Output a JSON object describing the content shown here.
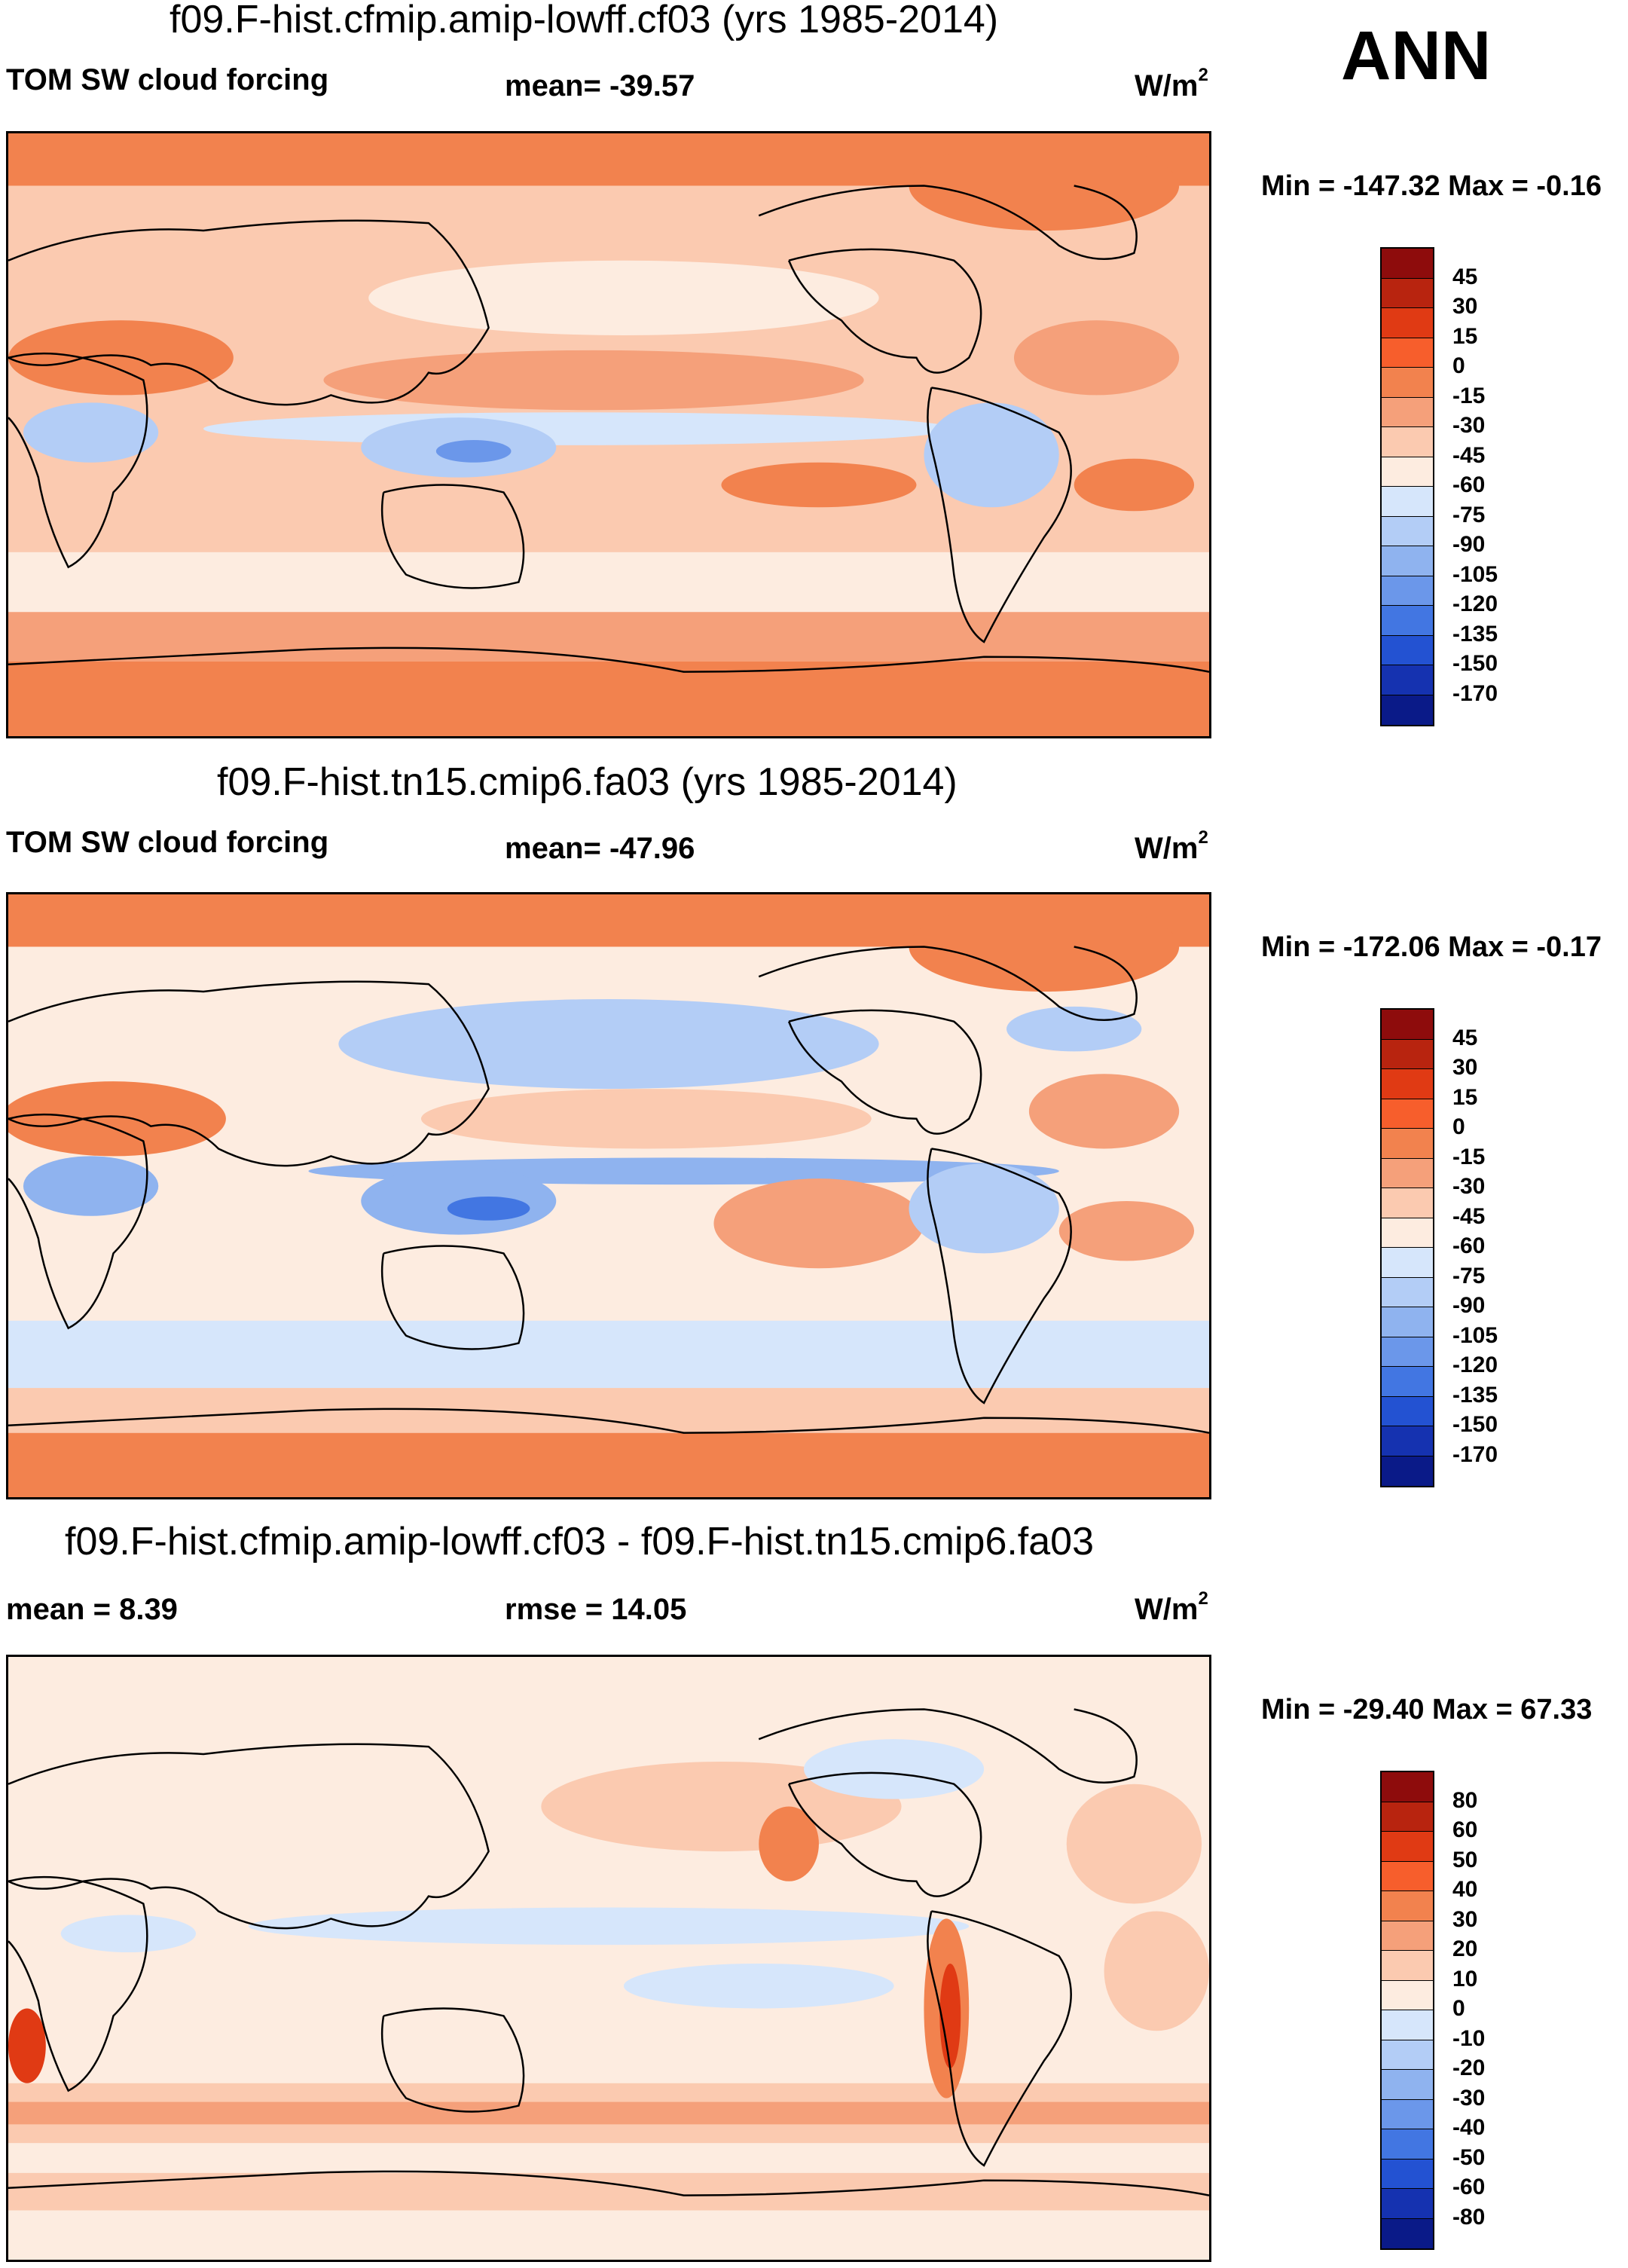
{
  "header": {
    "season": "ANN"
  },
  "panels": [
    {
      "title": "f09.F-hist.cfmip.amip-lowff.cf03 (yrs 1985-2014)",
      "left_label": "TOM SW cloud forcing",
      "center_label": "mean= -39.57",
      "units_base": "W/m",
      "units_exp": "2",
      "minmax": "Min = -147.32 Max =  -0.16",
      "colorbar_labels": [
        "45",
        "30",
        "15",
        "0",
        "-15",
        "-30",
        "-45",
        "-60",
        "-75",
        "-90",
        "-105",
        "-120",
        "-135",
        "-150",
        "-170"
      ],
      "colorbar_colors": [
        "#8e0c0c",
        "#b8240f",
        "#e03a14",
        "#f75e2c",
        "#f2824e",
        "#f5a07a",
        "#fbcab0",
        "#fdece0",
        "#d6e6fb",
        "#b3cdf6",
        "#8fb3ef",
        "#6b97ea",
        "#4276e2",
        "#2352d2",
        "#1532b0",
        "#0a1a88"
      ]
    },
    {
      "title": "f09.F-hist.tn15.cmip6.fa03 (yrs 1985-2014)",
      "left_label": "TOM SW cloud forcing",
      "center_label": "mean= -47.96",
      "units_base": "W/m",
      "units_exp": "2",
      "minmax": "Min = -172.06 Max =  -0.17",
      "colorbar_labels": [
        "45",
        "30",
        "15",
        "0",
        "-15",
        "-30",
        "-45",
        "-60",
        "-75",
        "-90",
        "-105",
        "-120",
        "-135",
        "-150",
        "-170"
      ],
      "colorbar_colors": [
        "#8e0c0c",
        "#b8240f",
        "#e03a14",
        "#f75e2c",
        "#f2824e",
        "#f5a07a",
        "#fbcab0",
        "#fdece0",
        "#d6e6fb",
        "#b3cdf6",
        "#8fb3ef",
        "#6b97ea",
        "#4276e2",
        "#2352d2",
        "#1532b0",
        "#0a1a88"
      ]
    },
    {
      "title": "f09.F-hist.cfmip.amip-lowff.cf03 - f09.F-hist.tn15.cmip6.fa03",
      "left_label": "mean =   8.39",
      "center_label": "rmse =  14.05",
      "units_base": "W/m",
      "units_exp": "2",
      "minmax": "Min = -29.40 Max =  67.33",
      "colorbar_labels": [
        "80",
        "60",
        "50",
        "40",
        "30",
        "20",
        "10",
        "0",
        "-10",
        "-20",
        "-30",
        "-40",
        "-50",
        "-60",
        "-80"
      ],
      "colorbar_colors": [
        "#8e0c0c",
        "#b8240f",
        "#e03a14",
        "#f75e2c",
        "#f2824e",
        "#f5a07a",
        "#fbcab0",
        "#fdece0",
        "#d6e6fb",
        "#b3cdf6",
        "#8fb3ef",
        "#6b97ea",
        "#4276e2",
        "#2352d2",
        "#1532b0",
        "#0a1a88"
      ]
    }
  ],
  "palette": {
    "ocean_warm": "#f5a07a",
    "ocean_pale": "#fbcab0",
    "ocean_cream": "#fdece0",
    "ice_red": "#f2824e",
    "blue_light": "#d6e6fb",
    "blue_mid": "#8fb3ef",
    "blue_dark": "#4276e2"
  }
}
